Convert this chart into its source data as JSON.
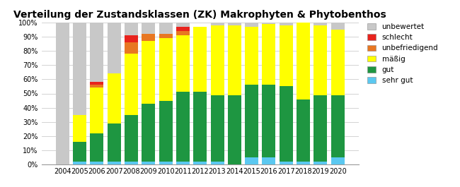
{
  "years": [
    2004,
    2005,
    2006,
    2007,
    2008,
    2009,
    2010,
    2011,
    2012,
    2013,
    2014,
    2015,
    2016,
    2017,
    2018,
    2019,
    2020
  ],
  "sehr_gut": [
    0,
    2,
    2,
    2,
    2,
    2,
    2,
    2,
    2,
    2,
    0,
    5,
    5,
    2,
    2,
    2,
    5
  ],
  "gut": [
    0,
    14,
    20,
    27,
    33,
    41,
    43,
    49,
    49,
    47,
    49,
    51,
    51,
    53,
    44,
    47,
    44
  ],
  "maessig": [
    0,
    19,
    32,
    35,
    43,
    44,
    44,
    40,
    46,
    49,
    49,
    41,
    43,
    43,
    54,
    49,
    46
  ],
  "unbefriedigend": [
    0,
    0,
    2,
    0,
    8,
    5,
    3,
    3,
    0,
    0,
    0,
    0,
    0,
    0,
    0,
    0,
    0
  ],
  "schlecht": [
    0,
    0,
    2,
    0,
    5,
    0,
    0,
    3,
    0,
    0,
    0,
    0,
    0,
    0,
    0,
    0,
    0
  ],
  "unbewertet": [
    100,
    65,
    42,
    36,
    9,
    8,
    8,
    3,
    0,
    2,
    2,
    3,
    1,
    2,
    0,
    2,
    5
  ],
  "colors": {
    "sehr_gut": "#5BC8F0",
    "gut": "#1E9641",
    "maessig": "#FFFF00",
    "unbefriedigend": "#E87722",
    "schlecht": "#E8231D",
    "unbewertet": "#C8C8C8"
  },
  "labels": {
    "sehr_gut": "sehr gut",
    "gut": "gut",
    "maessig": "mäßig",
    "unbefriedigend": "unbefriedigend",
    "schlecht": "schlecht",
    "unbewertet": "unbewertet"
  },
  "title": "Verteilung der Zustandsklassen (ZK) Makrophyten & Phytobenthos",
  "ylim": [
    0,
    100
  ],
  "yticks": [
    0,
    10,
    20,
    30,
    40,
    50,
    60,
    70,
    80,
    90,
    100
  ],
  "ytick_labels": [
    "0%",
    "10%",
    "20%",
    "30%",
    "40%",
    "50%",
    "60%",
    "70%",
    "80%",
    "90%",
    "100%"
  ],
  "bar_width": 0.78,
  "figsize": [
    6.5,
    2.65
  ],
  "dpi": 100,
  "title_fontsize": 10,
  "tick_fontsize": 7,
  "legend_fontsize": 7.5
}
